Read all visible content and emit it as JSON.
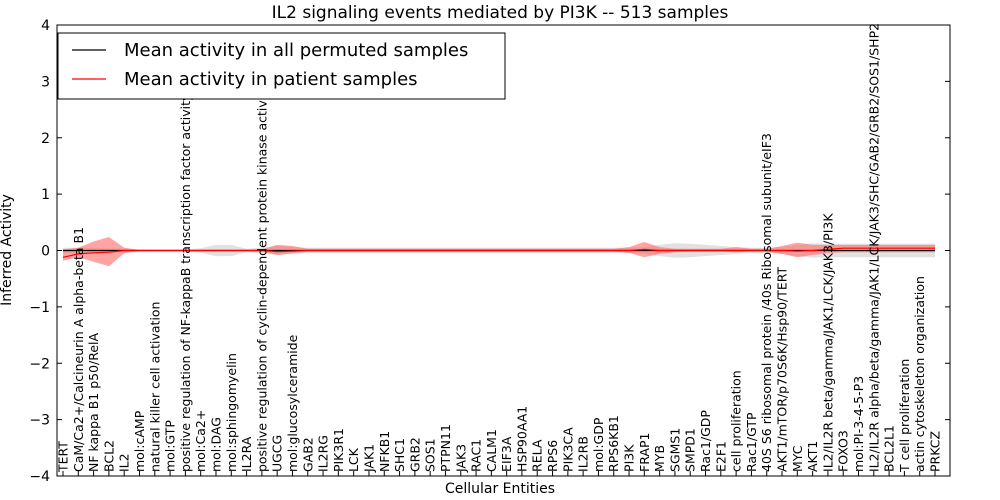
{
  "chart_data": {
    "type": "line",
    "title": "IL2 signaling events mediated by PI3K -- 513 samples",
    "xlabel": "Cellular Entities",
    "ylabel": "Inferred Activity",
    "ylim": [
      -4,
      4
    ],
    "yticks": [
      -4,
      -3,
      -2,
      -1,
      0,
      1,
      2,
      3,
      4
    ],
    "ytick_labels": [
      "−4",
      "−3",
      "−2",
      "−1",
      "0",
      "1",
      "2",
      "3",
      "4"
    ],
    "grid": false,
    "legend_position": "top-left",
    "categories": [
      "TERT",
      "CaM/Ca2+/Calcineurin A alpha-beta B1",
      "NF kappa B1 p50/RelA",
      "BCL2",
      "IL2",
      "mol:cAMP",
      "natural killer cell activation",
      "mol:GTP",
      "positive regulation of NF-kappaB transcription factor activity",
      "mol:Ca2+",
      "mol:DAG",
      "mol:sphingomyelin",
      "IL2RA",
      "positive regulation of cyclin-dependent protein kinase activity",
      "UGCG",
      "mol:glucosylceramide",
      "GAB2",
      "IL2RG",
      "PIK3R1",
      "LCK",
      "JAK1",
      "NFKB1",
      "SHC1",
      "GRB2",
      "SOS1",
      "PTPN11",
      "JAK3",
      "RAC1",
      "CALM1",
      "EIF3A",
      "HSP90AA1",
      "RELA",
      "RPS6",
      "PIK3CA",
      "IL2RB",
      "mol:GDP",
      "RPS6KB1",
      "PI3K",
      "FRAP1",
      "MYB",
      "SGMS1",
      "SMPD1",
      "Rac1/GDP",
      "E2F1",
      "cell proliferation",
      "Rac1/GTP",
      "40S S6 ribosomal protein /40s Ribosomal subunit/eIF3",
      "AKT1/mTOR/p70S6K/Hsp90/TERT",
      "MYC",
      "AKT1",
      "IL2/IL2R beta/gamma/JAK1/LCK/JAK3/PI3K",
      "FOXO3",
      "mol:PI-3-4-5-P3",
      "IL2/IL2R alpha/beta/gamma/JAK1/LCK/JAK3/SHC/GAB2/GRB2/SOS1/SHP2",
      "BCL2L1",
      "T cell proliferation",
      "actin cytoskeleton organization",
      "PRKCZ"
    ],
    "series": [
      {
        "name": "Mean activity in all permuted samples",
        "color": "#000000",
        "values": [
          0,
          0,
          0,
          0,
          0,
          0,
          0,
          0,
          0,
          0,
          0,
          0,
          0,
          0,
          0,
          0,
          0,
          0,
          0,
          0,
          0,
          0,
          0,
          0,
          0,
          0,
          0,
          0,
          0,
          0,
          0,
          0,
          0,
          0,
          0,
          0,
          0,
          0,
          0,
          0,
          0,
          0,
          0,
          0,
          0,
          0,
          0,
          0,
          0,
          0,
          0,
          0,
          0,
          0,
          0,
          0,
          0,
          0
        ],
        "lower": [
          -0.05,
          -0.05,
          -0.05,
          -0.04,
          -0.03,
          -0.02,
          -0.02,
          -0.02,
          -0.02,
          -0.04,
          -0.1,
          -0.1,
          -0.03,
          -0.05,
          -0.08,
          -0.06,
          -0.05,
          -0.05,
          -0.05,
          -0.05,
          -0.05,
          -0.05,
          -0.05,
          -0.05,
          -0.05,
          -0.05,
          -0.05,
          -0.05,
          -0.05,
          -0.05,
          -0.05,
          -0.05,
          -0.05,
          -0.05,
          -0.05,
          -0.05,
          -0.05,
          -0.05,
          -0.06,
          -0.1,
          -0.13,
          -0.12,
          -0.1,
          -0.08,
          -0.06,
          -0.05,
          -0.05,
          -0.06,
          -0.1,
          -0.13,
          -0.12,
          -0.12,
          -0.12,
          -0.12,
          -0.12,
          -0.12,
          -0.12,
          -0.12
        ],
        "upper": [
          0.05,
          0.05,
          0.05,
          0.04,
          0.03,
          0.02,
          0.02,
          0.02,
          0.02,
          0.04,
          0.1,
          0.1,
          0.03,
          0.05,
          0.08,
          0.06,
          0.05,
          0.05,
          0.05,
          0.05,
          0.05,
          0.05,
          0.05,
          0.05,
          0.05,
          0.05,
          0.05,
          0.05,
          0.05,
          0.05,
          0.05,
          0.05,
          0.05,
          0.05,
          0.05,
          0.05,
          0.05,
          0.05,
          0.06,
          0.1,
          0.13,
          0.12,
          0.1,
          0.08,
          0.06,
          0.05,
          0.05,
          0.06,
          0.1,
          0.13,
          0.12,
          0.12,
          0.12,
          0.12,
          0.12,
          0.12,
          0.12,
          0.12
        ]
      },
      {
        "name": "Mean activity in patient samples",
        "color": "#ff0000",
        "values": [
          -0.12,
          -0.06,
          -0.04,
          -0.03,
          0,
          0,
          0,
          0,
          0,
          0,
          0,
          0,
          0,
          0,
          -0.02,
          -0.01,
          0,
          0,
          0,
          0,
          0,
          0,
          0,
          0,
          0,
          0,
          0,
          0,
          0,
          0,
          0,
          0,
          0,
          0,
          0,
          0,
          0,
          0,
          0.02,
          0,
          0,
          0,
          0,
          0,
          0,
          0,
          0,
          0,
          -0.01,
          0,
          0.02,
          0.04,
          0.04,
          0.04,
          0.04,
          0.04,
          0.04,
          0.04
        ],
        "lower": [
          -0.18,
          -0.12,
          -0.2,
          -0.28,
          -0.05,
          -0.01,
          -0.01,
          -0.01,
          -0.01,
          -0.01,
          -0.01,
          -0.01,
          -0.01,
          -0.02,
          -0.08,
          -0.05,
          -0.02,
          -0.02,
          -0.02,
          -0.02,
          -0.02,
          -0.02,
          -0.02,
          -0.02,
          -0.02,
          -0.02,
          -0.02,
          -0.02,
          -0.02,
          -0.02,
          -0.02,
          -0.02,
          -0.02,
          -0.02,
          -0.02,
          -0.02,
          -0.02,
          -0.04,
          -0.12,
          -0.06,
          -0.03,
          -0.02,
          -0.02,
          -0.02,
          -0.03,
          -0.02,
          -0.02,
          -0.06,
          -0.12,
          -0.08,
          -0.05,
          -0.03,
          -0.03,
          -0.03,
          -0.03,
          -0.03,
          -0.03,
          -0.03
        ],
        "upper": [
          0.02,
          0.05,
          0.16,
          0.24,
          0.05,
          0.01,
          0.01,
          0.01,
          0.01,
          0.01,
          0.01,
          0.01,
          0.01,
          0.02,
          0.1,
          0.08,
          0.03,
          0.03,
          0.03,
          0.03,
          0.03,
          0.03,
          0.03,
          0.03,
          0.03,
          0.03,
          0.03,
          0.03,
          0.03,
          0.03,
          0.03,
          0.03,
          0.03,
          0.03,
          0.03,
          0.03,
          0.03,
          0.06,
          0.15,
          0.06,
          0.03,
          0.03,
          0.03,
          0.03,
          0.06,
          0.03,
          0.03,
          0.08,
          0.14,
          0.1,
          0.1,
          0.1,
          0.1,
          0.1,
          0.1,
          0.1,
          0.1,
          0.1
        ]
      }
    ],
    "band_colors": {
      "permuted": "#c8c8c8",
      "patient": "#ff6666"
    }
  }
}
